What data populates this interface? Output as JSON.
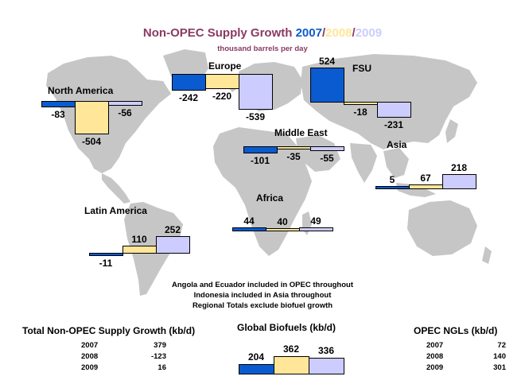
{
  "title": {
    "prefix": "Non-OPEC Supply Growth ",
    "y2007": "2007",
    "sep1": "/",
    "y2008": "2008",
    "sep2": "/",
    "y2009": "2009"
  },
  "subtitle": "thousand barrels per day",
  "colors": {
    "y2007": "#0a5bd0",
    "y2008": "#ffe699",
    "y2009": "#ccccff",
    "title": "#8b3a62",
    "map": "#c6c6c6"
  },
  "chart_data": {
    "type": "bar",
    "title": "Non-OPEC Supply Growth 2007/2008/2009",
    "subtitle": "thousand barrels per day",
    "series_names": [
      "2007",
      "2008",
      "2009"
    ],
    "regions": [
      {
        "name": "North America",
        "values": [
          -83,
          -504,
          -56
        ]
      },
      {
        "name": "Europe",
        "values": [
          -242,
          -220,
          -539
        ]
      },
      {
        "name": "FSU",
        "values": [
          524,
          -18,
          -231
        ]
      },
      {
        "name": "Middle East",
        "values": [
          -101,
          -35,
          -55
        ]
      },
      {
        "name": "Asia",
        "values": [
          5,
          67,
          218
        ]
      },
      {
        "name": "Africa",
        "values": [
          44,
          40,
          49
        ]
      },
      {
        "name": "Latin America",
        "values": [
          -11,
          110,
          252
        ]
      }
    ],
    "global_biofuels": {
      "title": "Global Biofuels (kb/d)",
      "values": [
        204,
        362,
        336
      ]
    }
  },
  "notes": [
    "Angola and Ecuador included in OPEC throughout",
    "Indonesia included in Asia throughout",
    "Regional Totals exclude biofuel growth"
  ],
  "total_table": {
    "title": "Total Non-OPEC Supply Growth (kb/d)",
    "rows": [
      {
        "year": "2007",
        "value": "379"
      },
      {
        "year": "2008",
        "value": "-123"
      },
      {
        "year": "2009",
        "value": "16"
      }
    ]
  },
  "ngl_table": {
    "title": "OPEC NGLs (kb/d)",
    "rows": [
      {
        "year": "2007",
        "value": "72"
      },
      {
        "year": "2008",
        "value": "140"
      },
      {
        "year": "2009",
        "value": "301"
      }
    ]
  }
}
